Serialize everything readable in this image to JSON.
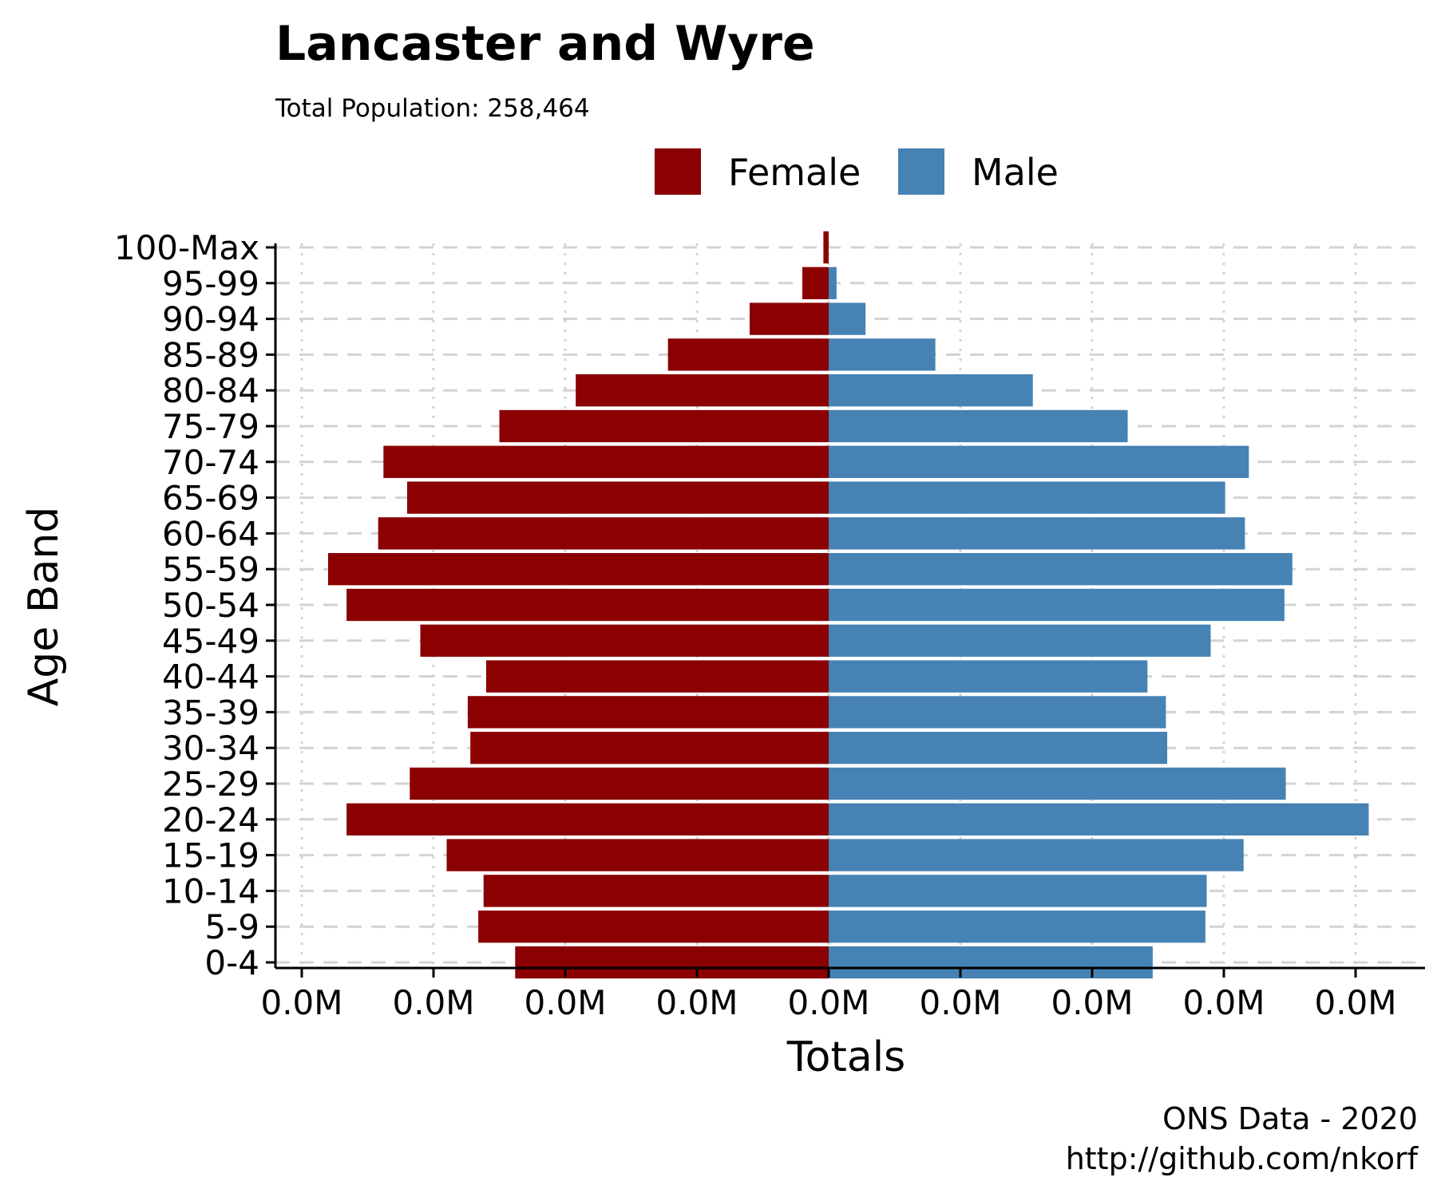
{
  "chart_data": {
    "type": "bar",
    "orientation": "horizontal-diverging",
    "title": "Lancaster and Wyre",
    "subtitle": "Total Population:  258,464",
    "xlabel": "Totals",
    "ylabel": "Age Band",
    "caption": [
      "ONS Data - 2020",
      "http://github.com/nkorf"
    ],
    "legend_position": "top",
    "grid": true,
    "categories": [
      "0-4",
      "5-9",
      "10-14",
      "15-19",
      "20-24",
      "25-29",
      "30-34",
      "35-39",
      "40-44",
      "45-49",
      "50-54",
      "55-59",
      "60-64",
      "65-69",
      "70-74",
      "75-79",
      "80-84",
      "85-89",
      "90-94",
      "95-99",
      "100-Max"
    ],
    "x_ticks": [
      -2000,
      -1500,
      -1000,
      -500,
      0,
      500,
      1000,
      1500,
      2000
    ],
    "x_tick_labels": [
      "0.0M",
      "0.0M",
      "0.0M",
      "0.0M",
      "0.0M",
      "0.0M",
      "0.0M",
      "0.0M",
      "0.0M"
    ],
    "xlim": [
      -2100,
      2250
    ],
    "series": [
      {
        "name": "Female",
        "color": "#8B0000",
        "values": [
          -1190,
          -1330,
          -1310,
          -1450,
          -1830,
          -1590,
          -1360,
          -1370,
          -1300,
          -1550,
          -1830,
          -1900,
          -1710,
          -1600,
          -1690,
          -1250,
          -960,
          -610,
          -300,
          -100,
          -20
        ]
      },
      {
        "name": "Male",
        "color": "#4682B4",
        "values": [
          1230,
          1430,
          1435,
          1575,
          2050,
          1735,
          1285,
          1280,
          1210,
          1450,
          1730,
          1760,
          1580,
          1505,
          1595,
          1135,
          775,
          405,
          140,
          30,
          0
        ]
      }
    ]
  }
}
